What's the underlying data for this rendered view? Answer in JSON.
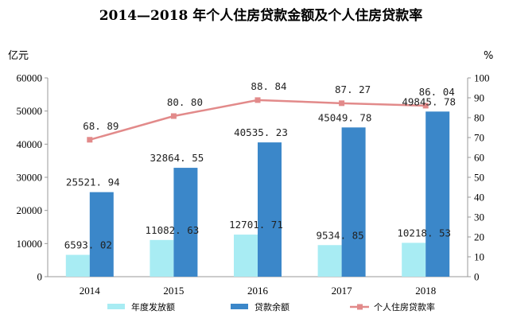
{
  "chart_data": {
    "type": "bar",
    "title": "2014—2018 年个人住房贷款金额及个人住房贷款率",
    "categories": [
      "2014",
      "2015",
      "2016",
      "2017",
      "2018"
    ],
    "y_left": {
      "unit": "亿元",
      "range": [
        0,
        60000
      ],
      "ticks": [
        "0",
        "10000",
        "20000",
        "30000",
        "40000",
        "50000",
        "60000"
      ]
    },
    "y_right": {
      "unit": "%",
      "range": [
        0,
        100
      ],
      "ticks": [
        "0",
        "10",
        "20",
        "30",
        "40",
        "50",
        "60",
        "70",
        "80",
        "90",
        "100"
      ]
    },
    "series": [
      {
        "name": "年度发放额",
        "type": "bar",
        "axis": "left",
        "color": "#a8ecf3",
        "values": [
          6593.02,
          11082.63,
          12701.71,
          9534.85,
          10218.53
        ],
        "labels": [
          "6593. 02",
          "11082. 63",
          "12701. 71",
          "9534. 85",
          "10218. 53"
        ]
      },
      {
        "name": "贷款余额",
        "type": "bar",
        "axis": "left",
        "color": "#3b87c9",
        "values": [
          25521.94,
          32864.55,
          40535.23,
          45049.78,
          49845.78
        ],
        "labels": [
          "25521. 94",
          "32864. 55",
          "40535. 23",
          "45049. 78",
          "49845. 78"
        ]
      },
      {
        "name": "个人住房贷款率",
        "type": "line",
        "axis": "right",
        "color": "#e28a8a",
        "values": [
          68.89,
          80.8,
          88.84,
          87.27,
          86.04
        ],
        "labels": [
          "68. 89",
          "80. 80",
          "88. 84",
          "87. 27",
          "86. 04"
        ]
      }
    ],
    "grid": false,
    "legend": "bottom"
  }
}
